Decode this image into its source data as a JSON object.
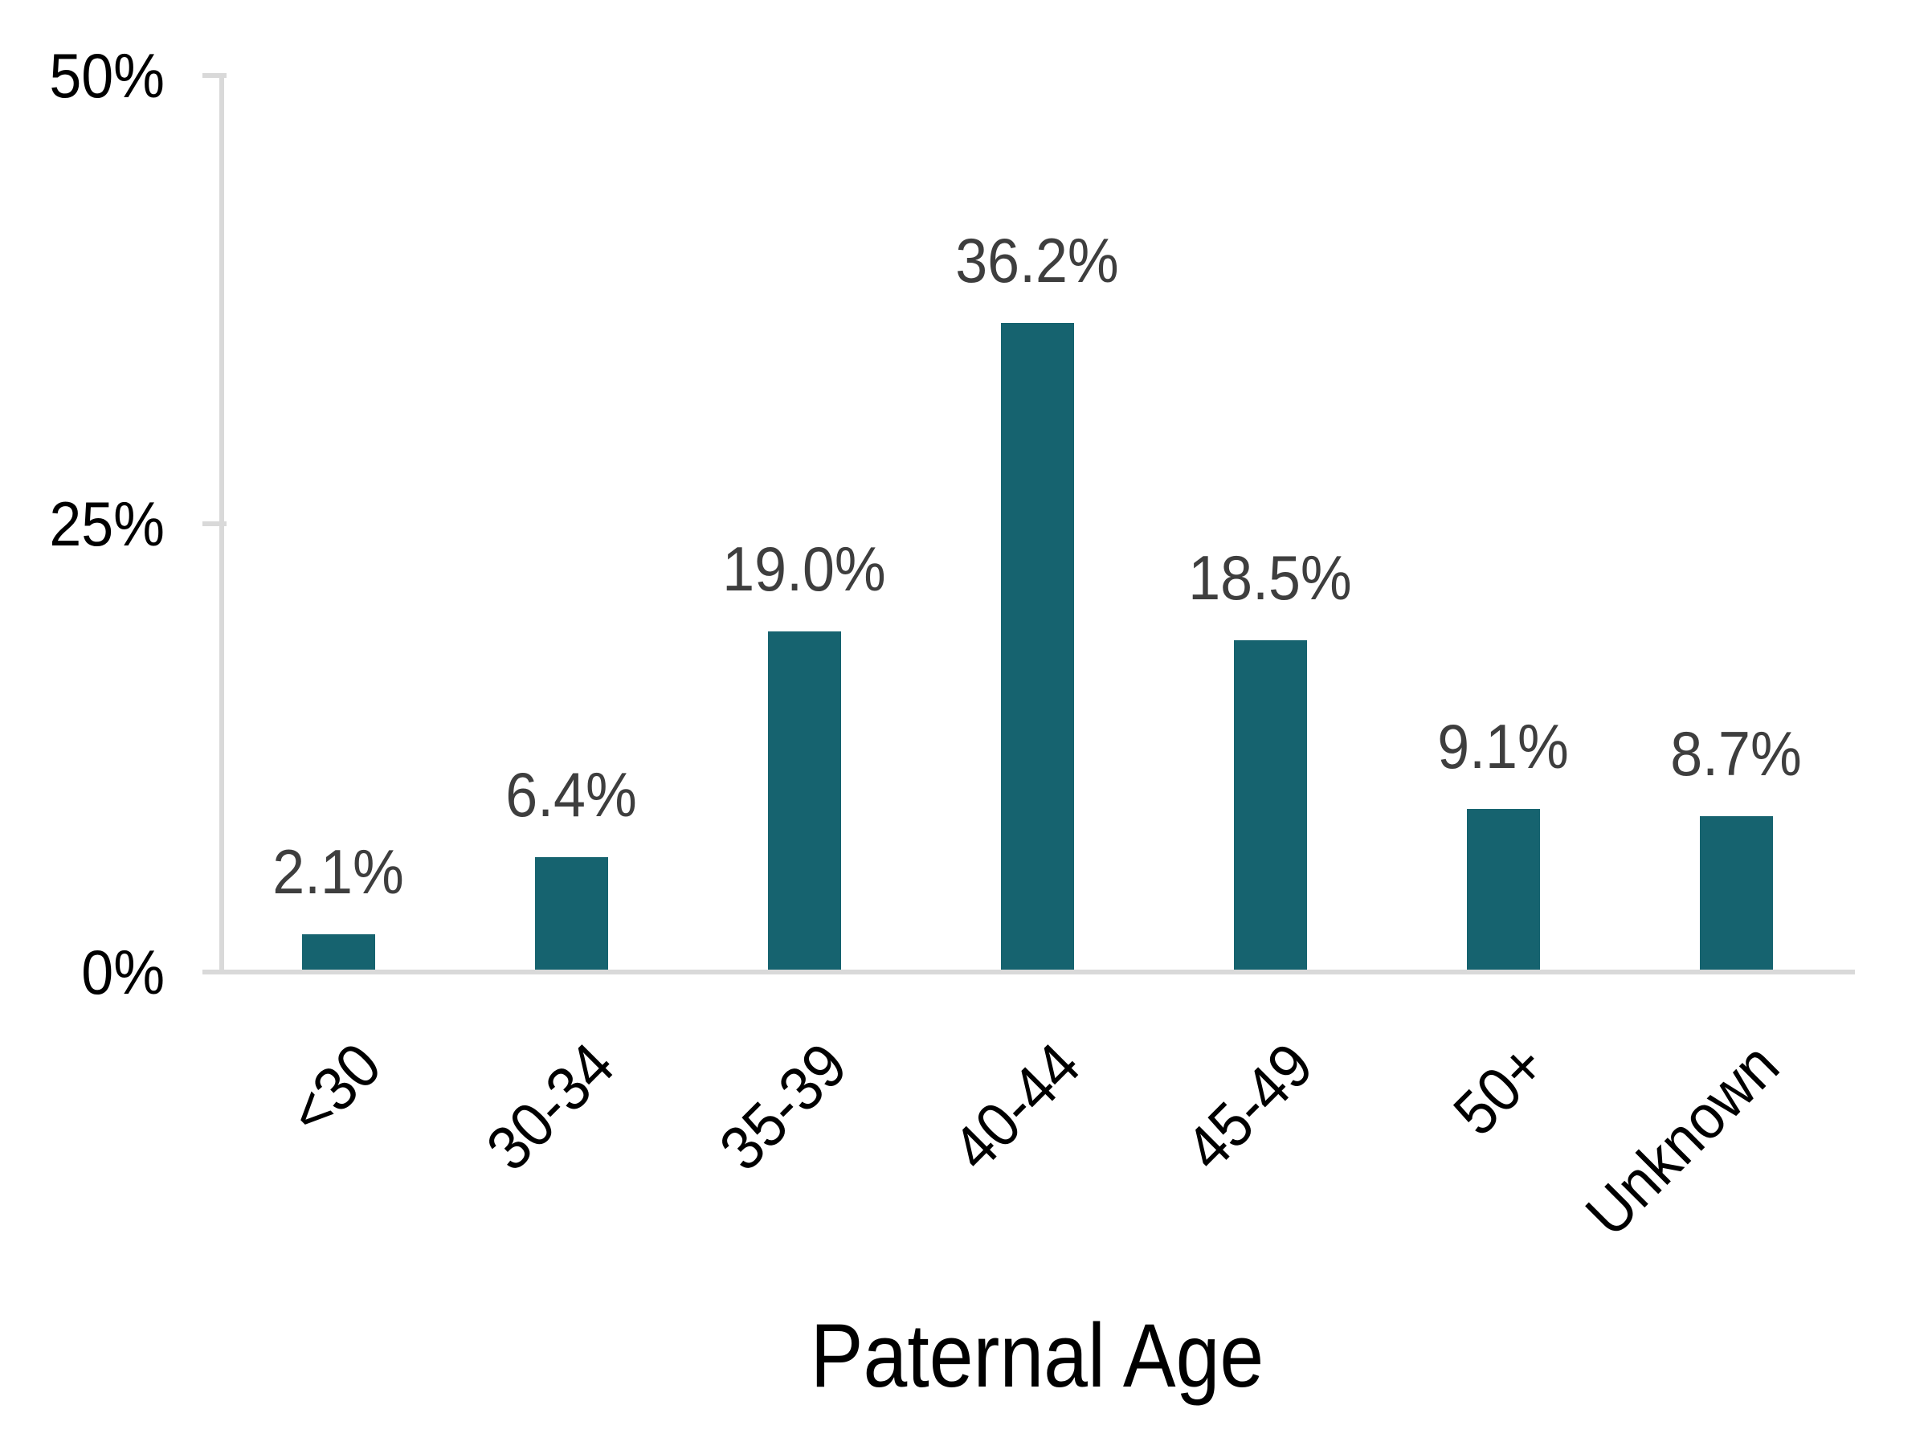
{
  "chart_data": {
    "type": "bar",
    "title": "",
    "xlabel": "Paternal Age",
    "ylabel": "",
    "categories": [
      "<30",
      "30-34",
      "35-39",
      "40-44",
      "45-49",
      "50+",
      "Unknown"
    ],
    "values": [
      2.1,
      6.4,
      19.0,
      36.2,
      18.5,
      9.1,
      8.7
    ],
    "value_labels": [
      "2.1%",
      "6.4%",
      "19.0%",
      "36.2%",
      "18.5%",
      "9.1%",
      "8.7%"
    ],
    "y_axis": {
      "range": [
        0,
        50
      ],
      "ticks": [
        {
          "value": 0,
          "label": "0%"
        },
        {
          "value": 25,
          "label": "25%"
        },
        {
          "value": 50,
          "label": "50%"
        }
      ]
    },
    "x_tick_rotation_deg": 45,
    "grid": false,
    "legend": false,
    "colors": {
      "bar": "#16636F",
      "value_label": "#3E3E3E",
      "axis_line": "#D9D9D9",
      "tick_text": "#000000",
      "background": "#FFFFFF"
    }
  }
}
